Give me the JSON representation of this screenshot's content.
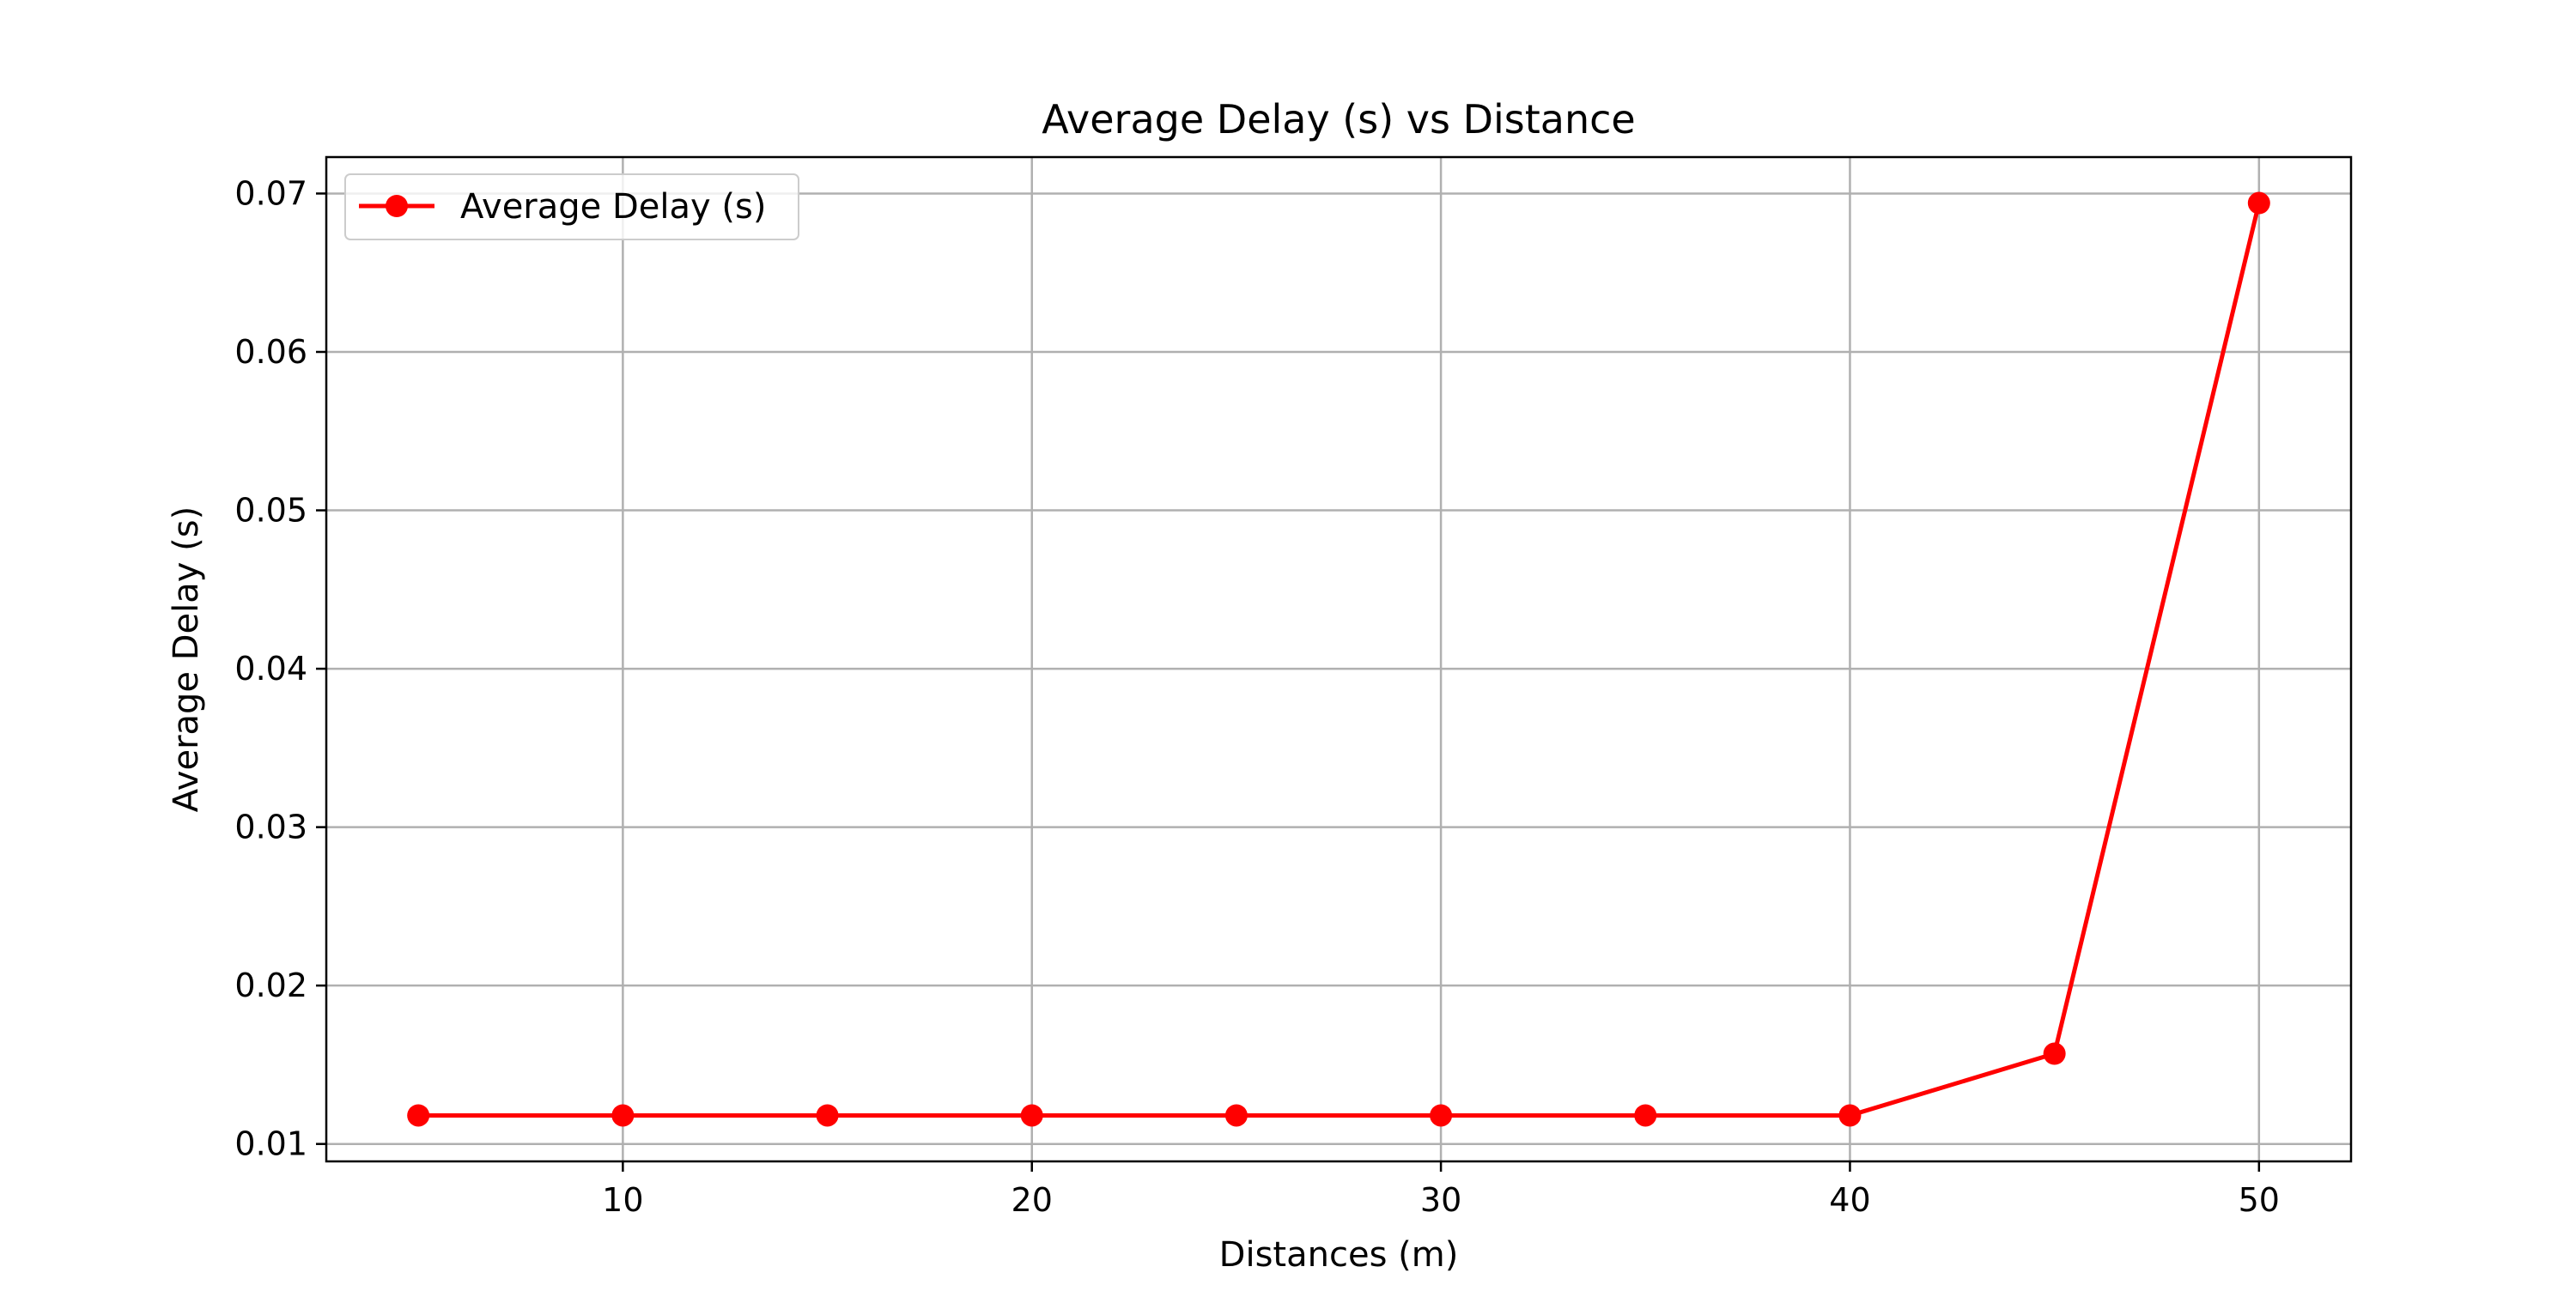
{
  "chart_data": {
    "type": "line",
    "title": "Average Delay (s) vs Distance",
    "xlabel": "Distances (m)",
    "ylabel": "Average Delay (s)",
    "x": [
      5,
      10,
      15,
      20,
      25,
      30,
      35,
      40,
      45,
      50
    ],
    "series": [
      {
        "name": "Average Delay (s)",
        "color": "#ff0000",
        "marker": "circle",
        "values": [
          0.0118,
          0.0118,
          0.0118,
          0.0118,
          0.0118,
          0.0118,
          0.0118,
          0.0118,
          0.0157,
          0.0694
        ]
      }
    ],
    "xlim": [
      2.75,
      52.25
    ],
    "ylim": [
      0.0089,
      0.0723
    ],
    "xticks": [
      10,
      20,
      30,
      40,
      50
    ],
    "xtick_labels": [
      "10",
      "20",
      "30",
      "40",
      "50"
    ],
    "yticks": [
      0.01,
      0.02,
      0.03,
      0.04,
      0.05,
      0.06,
      0.07
    ],
    "ytick_labels": [
      "0.01",
      "0.02",
      "0.03",
      "0.04",
      "0.05",
      "0.06",
      "0.07"
    ],
    "grid": true,
    "legend_position": "top-left"
  }
}
